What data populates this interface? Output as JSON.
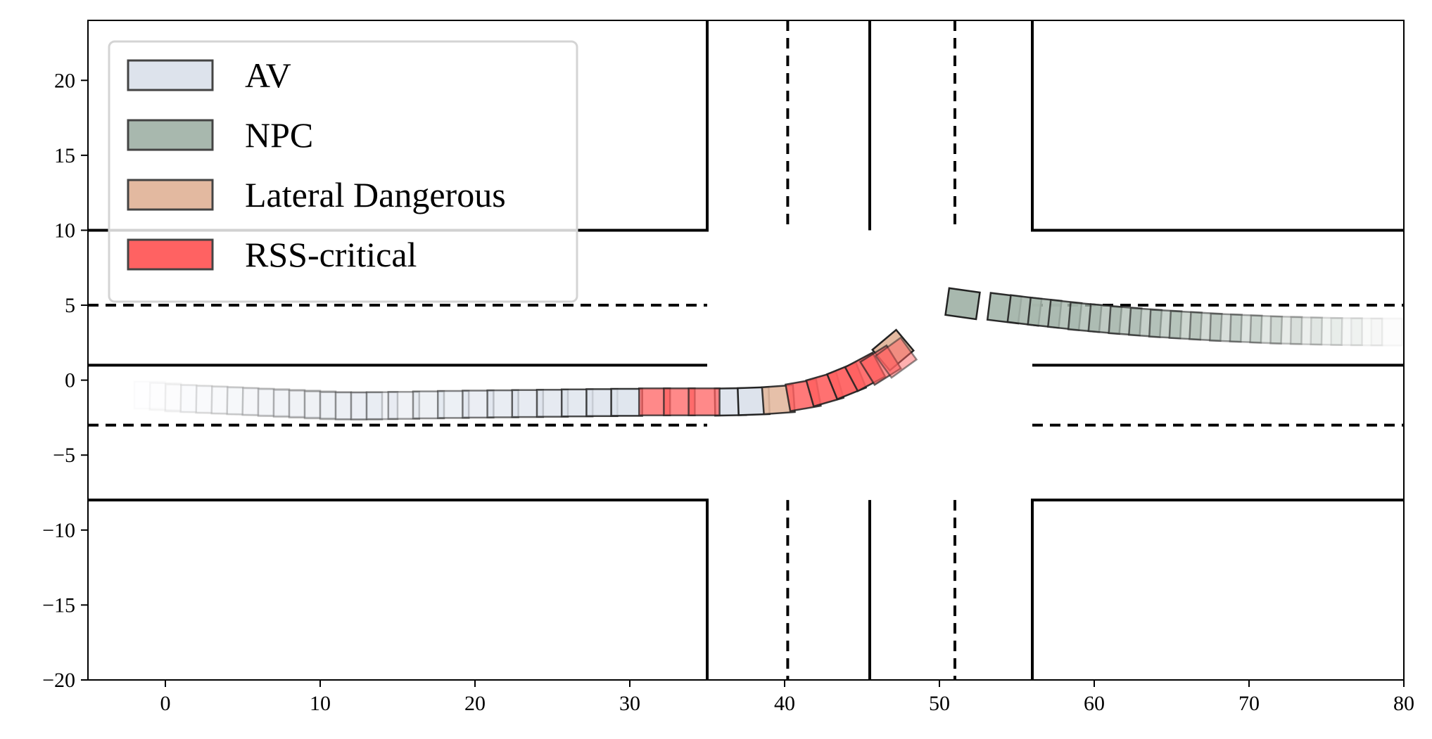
{
  "chart_data": {
    "type": "scatter",
    "title": "",
    "xlabel": "",
    "ylabel": "",
    "xlim": [
      -5,
      80
    ],
    "ylim": [
      -20,
      24
    ],
    "grid": false,
    "xticks": [
      0,
      10,
      20,
      30,
      40,
      50,
      60,
      70,
      80
    ],
    "yticks": [
      -20,
      -15,
      -10,
      -5,
      0,
      5,
      10,
      15,
      20
    ],
    "legend": {
      "position": "top-left",
      "entries": [
        {
          "name": "AV",
          "color": "#dde3ec"
        },
        {
          "name": "NPC",
          "color": "#a8b8ae"
        },
        {
          "name": "Lateral Dangerous",
          "color": "#e3b9a0"
        },
        {
          "name": "RSS-critical",
          "color": "#ff6262"
        }
      ]
    },
    "road": {
      "solid_lines": [
        [
          [
            -5,
            10
          ],
          [
            35,
            10
          ],
          [
            35,
            24
          ]
        ],
        [
          [
            56,
            24
          ],
          [
            56,
            10
          ],
          [
            80,
            10
          ]
        ],
        [
          [
            -5,
            1
          ],
          [
            35,
            1
          ]
        ],
        [
          [
            56,
            1
          ],
          [
            80,
            1
          ]
        ],
        [
          [
            -5,
            -8
          ],
          [
            35,
            -8
          ],
          [
            35,
            -20
          ]
        ],
        [
          [
            56,
            -20
          ],
          [
            56,
            -8
          ],
          [
            80,
            -8
          ]
        ],
        [
          [
            45.5,
            24
          ],
          [
            45.5,
            10
          ]
        ],
        [
          [
            45.5,
            -8
          ],
          [
            45.5,
            -20
          ]
        ]
      ],
      "dashed_lines": [
        [
          [
            -5,
            5
          ],
          [
            35,
            5
          ]
        ],
        [
          [
            56,
            5
          ],
          [
            80,
            5
          ]
        ],
        [
          [
            -5,
            -3
          ],
          [
            35,
            -3
          ]
        ],
        [
          [
            56,
            -3
          ],
          [
            80,
            -3
          ]
        ],
        [
          [
            40.2,
            24
          ],
          [
            40.2,
            10
          ]
        ],
        [
          [
            40.2,
            -8
          ],
          [
            40.2,
            -20
          ]
        ],
        [
          [
            51,
            24
          ],
          [
            51,
            10
          ]
        ],
        [
          [
            51,
            -8
          ],
          [
            51,
            -20
          ]
        ]
      ]
    },
    "vehicle_size": {
      "length": 2.0,
      "width": 1.8
    },
    "series": [
      {
        "name": "AV",
        "color": "#dde3ec",
        "points": [
          {
            "x": -1.0,
            "y": -1.0,
            "heading": 0,
            "alpha": 0.02
          },
          {
            "x": 0.0,
            "y": -1.1,
            "heading": -1,
            "alpha": 0.04
          },
          {
            "x": 1.0,
            "y": -1.2,
            "heading": -1,
            "alpha": 0.06
          },
          {
            "x": 2.0,
            "y": -1.25,
            "heading": -1,
            "alpha": 0.08
          },
          {
            "x": 3.0,
            "y": -1.3,
            "heading": -1,
            "alpha": 0.1
          },
          {
            "x": 4.0,
            "y": -1.35,
            "heading": -1,
            "alpha": 0.12
          },
          {
            "x": 5.0,
            "y": -1.4,
            "heading": -1,
            "alpha": 0.15
          },
          {
            "x": 6.0,
            "y": -1.45,
            "heading": -1,
            "alpha": 0.18
          },
          {
            "x": 7.0,
            "y": -1.5,
            "heading": 0,
            "alpha": 0.21
          },
          {
            "x": 8.0,
            "y": -1.55,
            "heading": 0,
            "alpha": 0.24
          },
          {
            "x": 9.0,
            "y": -1.6,
            "heading": 0,
            "alpha": 0.27
          },
          {
            "x": 10.0,
            "y": -1.65,
            "heading": 0,
            "alpha": 0.3
          },
          {
            "x": 11.0,
            "y": -1.7,
            "heading": 0,
            "alpha": 0.33
          },
          {
            "x": 12.0,
            "y": -1.72,
            "heading": 0,
            "alpha": 0.36
          },
          {
            "x": 13.0,
            "y": -1.72,
            "heading": 0,
            "alpha": 0.39
          },
          {
            "x": 14.0,
            "y": -1.7,
            "heading": 0,
            "alpha": 0.42
          },
          {
            "x": 15.4,
            "y": -1.68,
            "heading": 0,
            "alpha": 0.45
          },
          {
            "x": 17.0,
            "y": -1.65,
            "heading": 0,
            "alpha": 0.5
          },
          {
            "x": 18.6,
            "y": -1.62,
            "heading": 0,
            "alpha": 0.55
          },
          {
            "x": 20.2,
            "y": -1.6,
            "heading": 0,
            "alpha": 0.6
          },
          {
            "x": 21.8,
            "y": -1.58,
            "heading": 0,
            "alpha": 0.65
          },
          {
            "x": 23.4,
            "y": -1.56,
            "heading": 0,
            "alpha": 0.7
          },
          {
            "x": 25.0,
            "y": -1.54,
            "heading": 0,
            "alpha": 0.75
          },
          {
            "x": 26.6,
            "y": -1.52,
            "heading": 0,
            "alpha": 0.8
          },
          {
            "x": 28.2,
            "y": -1.5,
            "heading": 0,
            "alpha": 0.85
          },
          {
            "x": 29.8,
            "y": -1.48,
            "heading": 0,
            "alpha": 0.9
          },
          {
            "x": 36.5,
            "y": -1.45,
            "heading": 1,
            "alpha": 0.95
          },
          {
            "x": 38.0,
            "y": -1.4,
            "heading": 2,
            "alpha": 1.0
          }
        ]
      },
      {
        "name": "Lateral Dangerous",
        "color": "#e3b9a0",
        "points": [
          {
            "x": 39.6,
            "y": -1.3,
            "heading": 4,
            "alpha": 0.9
          },
          {
            "x": 47.0,
            "y": 2.0,
            "heading": 40,
            "alpha": 1.0
          }
        ]
      },
      {
        "name": "RSS-critical",
        "color": "#ff6262",
        "points": [
          {
            "x": 31.6,
            "y": -1.45,
            "heading": 0,
            "alpha": 0.75
          },
          {
            "x": 33.2,
            "y": -1.45,
            "heading": 0,
            "alpha": 0.75
          },
          {
            "x": 34.8,
            "y": -1.45,
            "heading": 0,
            "alpha": 0.75
          },
          {
            "x": 41.2,
            "y": -1.0,
            "heading": 10,
            "alpha": 0.85
          },
          {
            "x": 42.6,
            "y": -0.6,
            "heading": 16,
            "alpha": 0.9
          },
          {
            "x": 44.0,
            "y": -0.05,
            "heading": 22,
            "alpha": 0.95
          },
          {
            "x": 45.2,
            "y": 0.55,
            "heading": 28,
            "alpha": 0.9
          },
          {
            "x": 46.2,
            "y": 1.0,
            "heading": 32,
            "alpha": 0.7
          },
          {
            "x": 47.2,
            "y": 1.5,
            "heading": 36,
            "alpha": 0.5
          }
        ]
      },
      {
        "name": "NPC",
        "color": "#a8b8ae",
        "points": [
          {
            "x": 51.5,
            "y": 5.1,
            "heading": -8,
            "alpha": 1.0
          },
          {
            "x": 54.2,
            "y": 4.8,
            "heading": -7,
            "alpha": 0.95
          },
          {
            "x": 55.5,
            "y": 4.65,
            "heading": -7,
            "alpha": 0.9
          },
          {
            "x": 56.8,
            "y": 4.5,
            "heading": -6,
            "alpha": 0.85
          },
          {
            "x": 58.1,
            "y": 4.35,
            "heading": -6,
            "alpha": 0.82
          },
          {
            "x": 59.4,
            "y": 4.2,
            "heading": -5,
            "alpha": 0.78
          },
          {
            "x": 60.7,
            "y": 4.08,
            "heading": -5,
            "alpha": 0.74
          },
          {
            "x": 62.0,
            "y": 3.96,
            "heading": -4,
            "alpha": 0.7
          },
          {
            "x": 63.3,
            "y": 3.85,
            "heading": -4,
            "alpha": 0.66
          },
          {
            "x": 64.6,
            "y": 3.75,
            "heading": -3,
            "alpha": 0.62
          },
          {
            "x": 65.9,
            "y": 3.66,
            "heading": -3,
            "alpha": 0.58
          },
          {
            "x": 67.2,
            "y": 3.58,
            "heading": -3,
            "alpha": 0.52
          },
          {
            "x": 68.5,
            "y": 3.5,
            "heading": -2,
            "alpha": 0.46
          },
          {
            "x": 69.8,
            "y": 3.44,
            "heading": -2,
            "alpha": 0.4
          },
          {
            "x": 71.1,
            "y": 3.38,
            "heading": -2,
            "alpha": 0.34
          },
          {
            "x": 72.4,
            "y": 3.33,
            "heading": -1,
            "alpha": 0.28
          },
          {
            "x": 73.7,
            "y": 3.29,
            "heading": -1,
            "alpha": 0.22
          },
          {
            "x": 75.0,
            "y": 3.26,
            "heading": -1,
            "alpha": 0.16
          },
          {
            "x": 76.3,
            "y": 3.24,
            "heading": 0,
            "alpha": 0.11
          },
          {
            "x": 77.6,
            "y": 3.22,
            "heading": 0,
            "alpha": 0.07
          },
          {
            "x": 78.9,
            "y": 3.21,
            "heading": 0,
            "alpha": 0.04
          }
        ]
      }
    ]
  }
}
